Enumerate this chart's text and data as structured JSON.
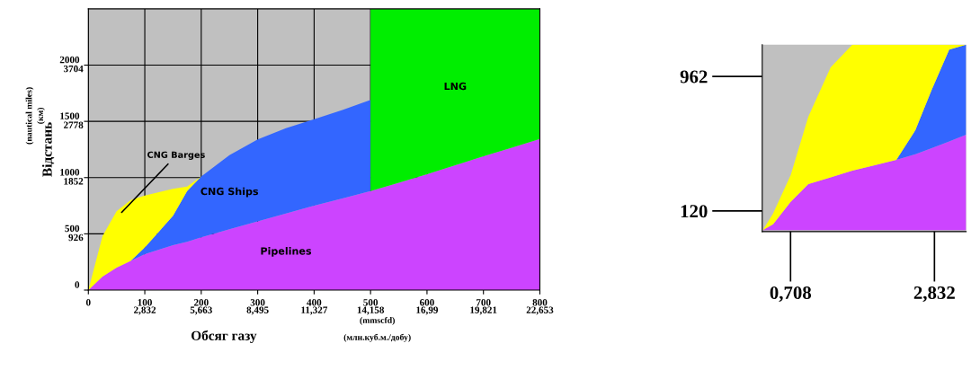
{
  "chart_data": [
    {
      "type": "area",
      "stacked": true,
      "xlabel": "Обсяг газу",
      "ylabel": "Відстань",
      "xlim": [
        0,
        800
      ],
      "ylim": [
        0,
        2500
      ],
      "xticks": [
        0,
        100,
        200,
        300,
        400,
        500,
        600,
        700,
        800
      ],
      "yticks": [
        0,
        500,
        1000,
        1500,
        2000
      ],
      "x2lim": [
        0,
        22.653
      ],
      "x2ticks": [
        {
          "value": 2.832,
          "label": "2,832"
        },
        {
          "value": 5.663,
          "label": "5,663"
        },
        {
          "value": 8.495,
          "label": "8,495"
        },
        {
          "value": 11.327,
          "label": "11,327"
        },
        {
          "value": 14.158,
          "label": "14,158"
        },
        {
          "value": 16.99,
          "label": "16,99"
        },
        {
          "value": 19.821,
          "label": "19,821"
        },
        {
          "value": 22.653,
          "label": "22,653"
        }
      ],
      "y2lim": [
        0,
        4630
      ],
      "y2ticks": [
        926,
        1852,
        2778,
        3704
      ],
      "grid": true,
      "x": [
        0,
        25,
        50,
        75,
        100,
        125,
        150,
        175,
        200,
        250,
        300,
        350,
        400,
        450,
        500,
        500,
        550,
        600,
        650,
        700,
        750,
        800
      ],
      "series": [
        {
          "name": "Pipelines",
          "color": "#cc44ff",
          "values": [
            0,
            120,
            200,
            260,
            320,
            360,
            400,
            430,
            470,
            540,
            610,
            680,
            750,
            815,
            880,
            880,
            955,
            1030,
            1110,
            1190,
            1265,
            1344
          ]
        },
        {
          "name": "CNG Ships",
          "color": "#3366ff",
          "values": [
            null,
            null,
            null,
            0,
            60,
            160,
            260,
            450,
            540,
            660,
            730,
            760,
            770,
            785,
            810,
            null,
            null,
            null,
            null,
            null,
            null,
            null
          ]
        },
        {
          "color": "#ffff00",
          "values": [
            0,
            360,
            500,
            540,
            460,
            350,
            240,
            40,
            0,
            null,
            null,
            null,
            null,
            null,
            null,
            null,
            null,
            null,
            null,
            null,
            null,
            null
          ]
        },
        {
          "name": "LNG",
          "color": "#00ee00",
          "values": [
            null,
            null,
            null,
            null,
            null,
            null,
            null,
            null,
            null,
            null,
            null,
            null,
            null,
            null,
            null,
            1620,
            1545,
            1470,
            1390,
            1310,
            1235,
            1156
          ]
        }
      ],
      "annotations": [
        "(nautical miles)",
        "(км)",
        "(mmscfd)",
        "(млн.куб.м./добу)",
        "CNG Barges"
      ]
    },
    {
      "type": "area",
      "stacked": true,
      "xlim": [
        0.29,
        3.3
      ],
      "ylim": [
        -10,
        1160
      ],
      "xticks": [
        {
          "value": 0.708,
          "label": "0,708"
        },
        {
          "value": 2.832,
          "label": "2,832"
        }
      ],
      "yticks": [
        120,
        962
      ],
      "x": [
        0.3,
        0.45,
        0.71,
        0.97,
        1.3,
        1.62,
        1.95,
        2.27,
        2.55,
        2.79,
        3.05,
        3.3
      ],
      "series": [
        {
          "color": "#cc44ff",
          "values": [
            0,
            36,
            176,
            288,
            330,
            372,
            405,
            440,
            475,
            513,
            555,
            597
          ]
        },
        {
          "color": "#3366ff",
          "values": [
            null,
            null,
            null,
            null,
            null,
            null,
            null,
            0,
            150,
            364,
            575,
            563
          ]
        },
        {
          "color": "#ffff00",
          "values": [
            0,
            67,
            168,
            421,
            688,
            788,
            755,
            720,
            535,
            283,
            30,
            0
          ]
        }
      ]
    }
  ]
}
